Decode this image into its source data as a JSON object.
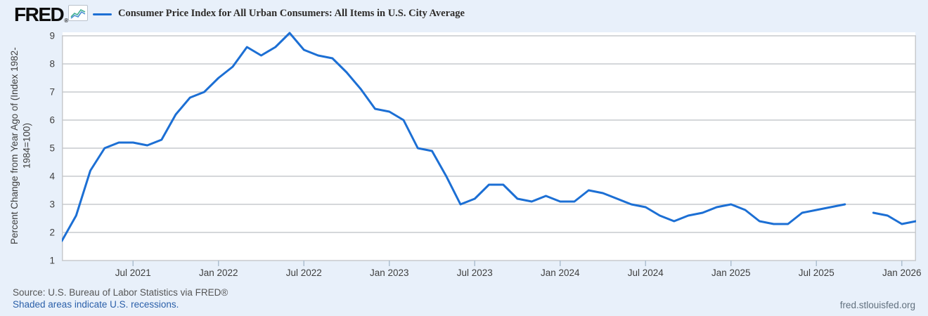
{
  "header": {
    "logo_text": "FRED",
    "registered_mark": "®",
    "legend_label": "Consumer Price Index for All Urban Consumers: All Items in U.S. City Average"
  },
  "y_axis": {
    "title_line1": "Percent Change from Year Ago of (Index 1982-",
    "title_line2": "1984=100)",
    "ticks": [
      9,
      8,
      7,
      6,
      5,
      4,
      3,
      2,
      1
    ]
  },
  "x_axis": {
    "ticks": [
      {
        "label": "Jul 2021",
        "month_index": 5
      },
      {
        "label": "Jan 2022",
        "month_index": 11
      },
      {
        "label": "Jul 2022",
        "month_index": 17
      },
      {
        "label": "Jan 2023",
        "month_index": 23
      },
      {
        "label": "Jul 2023",
        "month_index": 29
      },
      {
        "label": "Jan 2024",
        "month_index": 35
      },
      {
        "label": "Jul 2024",
        "month_index": 41
      },
      {
        "label": "Jan 2025",
        "month_index": 47
      },
      {
        "label": "Jul 2025",
        "month_index": 53
      },
      {
        "label": "Jan 2026",
        "month_index": 59
      }
    ]
  },
  "footer": {
    "source": "Source: U.S. Bureau of Labor Statistics via FRED®",
    "recession_note": "Shaded areas indicate U.S. recessions.",
    "site": "fred.stlouisfed.org"
  },
  "colors": {
    "background": "#e8f0fa",
    "plot_background": "#ffffff",
    "grid": "#c7cacd",
    "line": "#1c6fd4",
    "tick": "#aebfd0",
    "link_blue": "#2a5fa9",
    "icon_blue": "#4a8fd3",
    "icon_green": "#43b093"
  },
  "chart_data": {
    "type": "line",
    "title": "Consumer Price Index for All Urban Consumers: All Items in U.S. City Average",
    "ylabel": "Percent Change from Year Ago of (Index 1982-1984=100)",
    "ylim": [
      1,
      9
    ],
    "grid": true,
    "legend_position": "top",
    "series_name": "Consumer Price Index for All Urban Consumers: All Items in U.S. City Average",
    "x": [
      "2021-02",
      "2021-03",
      "2021-04",
      "2021-05",
      "2021-06",
      "2021-07",
      "2021-08",
      "2021-09",
      "2021-10",
      "2021-11",
      "2021-12",
      "2022-01",
      "2022-02",
      "2022-03",
      "2022-04",
      "2022-05",
      "2022-06",
      "2022-07",
      "2022-08",
      "2022-09",
      "2022-10",
      "2022-11",
      "2022-12",
      "2023-01",
      "2023-02",
      "2023-03",
      "2023-04",
      "2023-05",
      "2023-06",
      "2023-07",
      "2023-08",
      "2023-09",
      "2023-10",
      "2023-11",
      "2023-12",
      "2024-01",
      "2024-02",
      "2024-03",
      "2024-04",
      "2024-05",
      "2024-06",
      "2024-07",
      "2024-08",
      "2024-09",
      "2024-10",
      "2024-11",
      "2024-12",
      "2025-01",
      "2025-02",
      "2025-03",
      "2025-04",
      "2025-05",
      "2025-06",
      "2025-07",
      "2025-08",
      "2025-09",
      "2025-10",
      "2025-11",
      "2025-12",
      "2026-01",
      "2026-02"
    ],
    "values": [
      1.7,
      2.6,
      4.2,
      5.0,
      5.2,
      5.2,
      5.1,
      5.3,
      6.2,
      6.8,
      7.0,
      7.5,
      7.9,
      8.6,
      8.3,
      8.6,
      9.1,
      8.5,
      8.3,
      8.2,
      7.7,
      7.1,
      6.4,
      6.3,
      6.0,
      5.0,
      4.9,
      4.0,
      3.0,
      3.2,
      3.7,
      3.7,
      3.2,
      3.1,
      3.3,
      3.1,
      3.1,
      3.5,
      3.4,
      3.2,
      3.0,
      2.9,
      2.6,
      2.4,
      2.6,
      2.7,
      2.9,
      3.0,
      2.8,
      2.4,
      2.3,
      2.3,
      2.7,
      2.8,
      2.9,
      3.0,
      null,
      2.7,
      2.6,
      2.3,
      2.4
    ]
  }
}
